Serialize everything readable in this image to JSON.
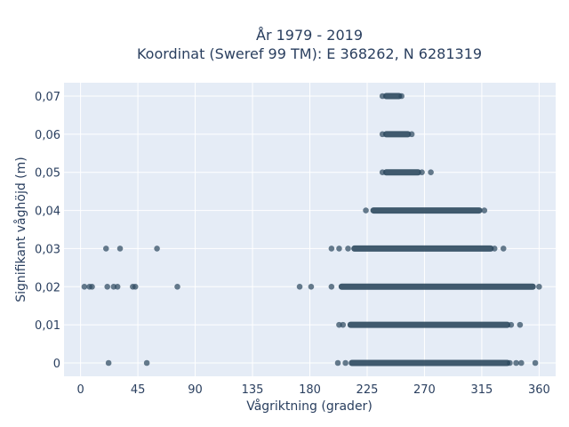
{
  "chart_data": {
    "type": "scatter",
    "title_line1": "År 1979 - 2019",
    "title_line2": "Koordinat (Sweref 99 TM): E 368262, N 6281319",
    "xlabel": "Vågriktning (grader)",
    "ylabel": "Signifikant våghöjd (m)",
    "xlim": [
      -13,
      373
    ],
    "ylim": [
      -0.0035,
      0.0735
    ],
    "x_ticks": [
      0,
      45,
      90,
      135,
      180,
      225,
      270,
      315,
      360
    ],
    "x_tick_labels": [
      "0",
      "45",
      "90",
      "135",
      "180",
      "225",
      "270",
      "315",
      "360"
    ],
    "y_ticks": [
      0,
      0.01,
      0.02,
      0.03,
      0.04,
      0.05,
      0.06,
      0.07
    ],
    "y_tick_labels": [
      "0",
      "0,01",
      "0,02",
      "0,03",
      "0,04",
      "0,05",
      "0,06",
      "0,07"
    ],
    "grid": true,
    "legend": "none",
    "colors": {
      "marker": "#2e4a5f",
      "plot_bg": "#e5ecf6",
      "grid": "#ffffff",
      "text": "#2a3f5f"
    },
    "clusters": [
      {
        "y": 0.07,
        "x_from": 240,
        "x_to": 250
      },
      {
        "y": 0.06,
        "x_from": 240,
        "x_to": 257
      },
      {
        "y": 0.05,
        "x_from": 240,
        "x_to": 265
      },
      {
        "y": 0.04,
        "x_from": 230,
        "x_to": 313
      },
      {
        "y": 0.03,
        "x_from": 215,
        "x_to": 322
      },
      {
        "y": 0.02,
        "x_from": 205,
        "x_to": 355
      },
      {
        "y": 0.01,
        "x_from": 212,
        "x_to": 335
      },
      {
        "y": 0,
        "x_from": 213,
        "x_to": 335
      }
    ],
    "points": [
      {
        "x": 237,
        "y": 0.07
      },
      {
        "x": 252,
        "y": 0.07
      },
      {
        "x": 237,
        "y": 0.06
      },
      {
        "x": 260,
        "y": 0.06
      },
      {
        "x": 237,
        "y": 0.05
      },
      {
        "x": 268,
        "y": 0.05
      },
      {
        "x": 275,
        "y": 0.05
      },
      {
        "x": 224,
        "y": 0.04
      },
      {
        "x": 317,
        "y": 0.04
      },
      {
        "x": 20,
        "y": 0.03
      },
      {
        "x": 31,
        "y": 0.03
      },
      {
        "x": 60,
        "y": 0.03
      },
      {
        "x": 197,
        "y": 0.03
      },
      {
        "x": 203,
        "y": 0.03
      },
      {
        "x": 210,
        "y": 0.03
      },
      {
        "x": 325,
        "y": 0.03
      },
      {
        "x": 332,
        "y": 0.03
      },
      {
        "x": 3,
        "y": 0.02
      },
      {
        "x": 7,
        "y": 0.02
      },
      {
        "x": 9,
        "y": 0.02
      },
      {
        "x": 21,
        "y": 0.02
      },
      {
        "x": 26,
        "y": 0.02
      },
      {
        "x": 29,
        "y": 0.02
      },
      {
        "x": 41,
        "y": 0.02
      },
      {
        "x": 43,
        "y": 0.02
      },
      {
        "x": 76,
        "y": 0.02
      },
      {
        "x": 172,
        "y": 0.02
      },
      {
        "x": 181,
        "y": 0.02
      },
      {
        "x": 197,
        "y": 0.02
      },
      {
        "x": 360,
        "y": 0.02
      },
      {
        "x": 203,
        "y": 0.01
      },
      {
        "x": 206,
        "y": 0.01
      },
      {
        "x": 338,
        "y": 0.01
      },
      {
        "x": 345,
        "y": 0.01
      },
      {
        "x": 22,
        "y": 0
      },
      {
        "x": 52,
        "y": 0
      },
      {
        "x": 202,
        "y": 0
      },
      {
        "x": 208,
        "y": 0
      },
      {
        "x": 337,
        "y": 0
      },
      {
        "x": 342,
        "y": 0
      },
      {
        "x": 346,
        "y": 0
      },
      {
        "x": 357,
        "y": 0
      }
    ]
  }
}
